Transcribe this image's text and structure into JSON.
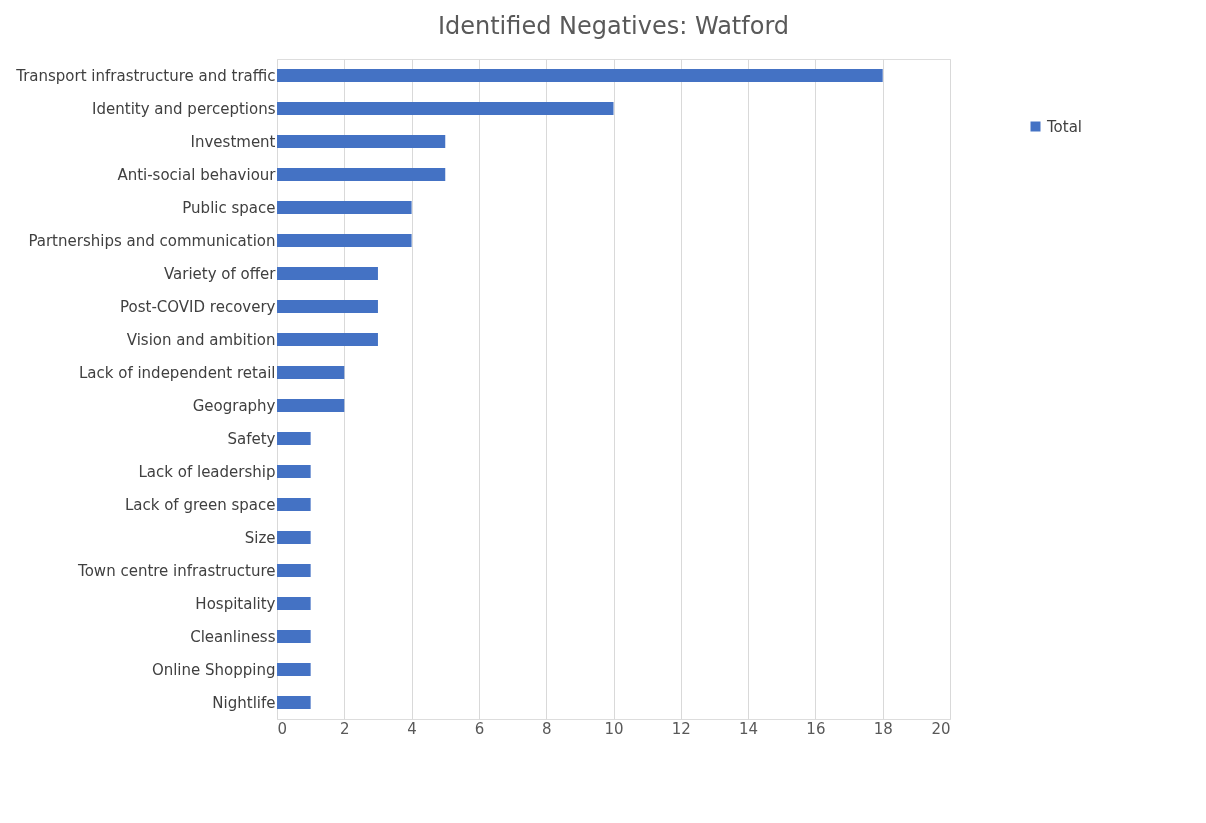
{
  "chart_data": {
    "type": "bar",
    "orientation": "horizontal",
    "title": "Identified Negatives: Watford",
    "categories": [
      "Transport infrastructure and traffic",
      "Identity and perceptions",
      "Investment",
      "Anti-social behaviour",
      "Public space",
      "Partnerships and communication",
      "Variety of offer",
      "Post-COVID recovery",
      "Vision and ambition",
      "Lack of independent retail",
      "Geography",
      "Safety",
      "Lack of leadership",
      "Lack of green space",
      "Size",
      "Town centre infrastructure",
      "Hospitality",
      "Cleanliness",
      "Online Shopping",
      "Nightlife"
    ],
    "series": [
      {
        "name": "Total",
        "color": "#4472c4",
        "values": [
          18,
          10,
          5,
          5,
          4,
          4,
          3,
          3,
          3,
          2,
          2,
          1,
          1,
          1,
          1,
          1,
          1,
          1,
          1,
          1
        ]
      }
    ],
    "xlim": [
      0,
      20
    ],
    "xticks": [
      0,
      2,
      4,
      6,
      8,
      10,
      12,
      14,
      16,
      18,
      20
    ],
    "grid": "x",
    "legend": "right"
  }
}
